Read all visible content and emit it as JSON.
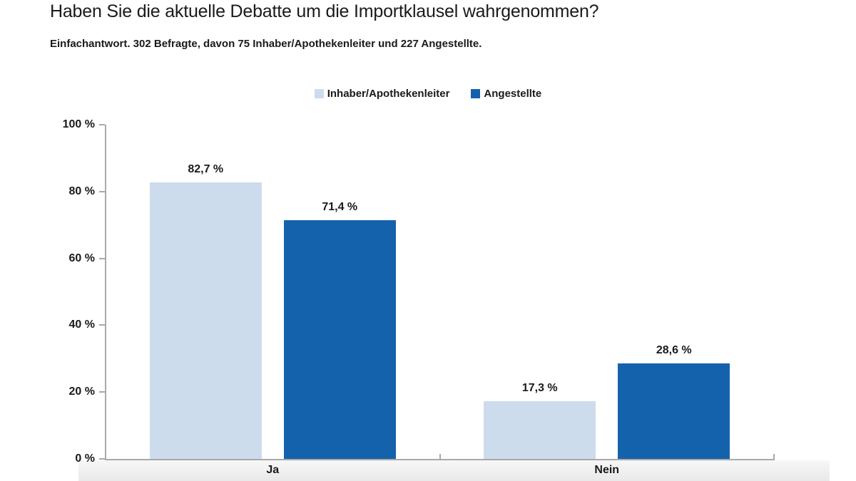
{
  "title": "Haben Sie die aktuelle Debatte um die Importklausel wahrgenommen?",
  "subtitle": "Einfachantwort. 302 Befragte, davon 75 Inhaber/Apothekenleiter und 227 Angestellte.",
  "colors": {
    "series_light": "#CDDCEC",
    "series_dark": "#1562AC",
    "axis": "#A9A9A9",
    "text": "#1A1A1A"
  },
  "chart_data": {
    "type": "bar",
    "title": "Haben Sie die aktuelle Debatte um die Importklausel wahrgenommen?",
    "subtitle": "Einfachantwort. 302 Befragte, davon 75 Inhaber/Apothekenleiter und 227 Angestellte.",
    "categories": [
      "Ja",
      "Nein"
    ],
    "series": [
      {
        "name": "Inhaber/Apothekenleiter",
        "color": "#CDDCEC",
        "values": [
          82.7,
          17.3
        ],
        "labels": [
          "82,7 %",
          "17,3 %"
        ]
      },
      {
        "name": "Angestellte",
        "color": "#1562AC",
        "values": [
          71.4,
          28.6
        ],
        "labels": [
          "71,4 %",
          "28,6 %"
        ]
      }
    ],
    "xlabel": "",
    "ylabel": "",
    "ylim": [
      0,
      100
    ],
    "yticks": [
      0,
      20,
      40,
      60,
      80,
      100
    ],
    "ytick_labels": [
      "0 %",
      "20 %",
      "40 %",
      "60 %",
      "80 %",
      "100 %"
    ],
    "grid": false,
    "legend_position": "top-center",
    "value_label_format": "comma-decimal-percent"
  }
}
